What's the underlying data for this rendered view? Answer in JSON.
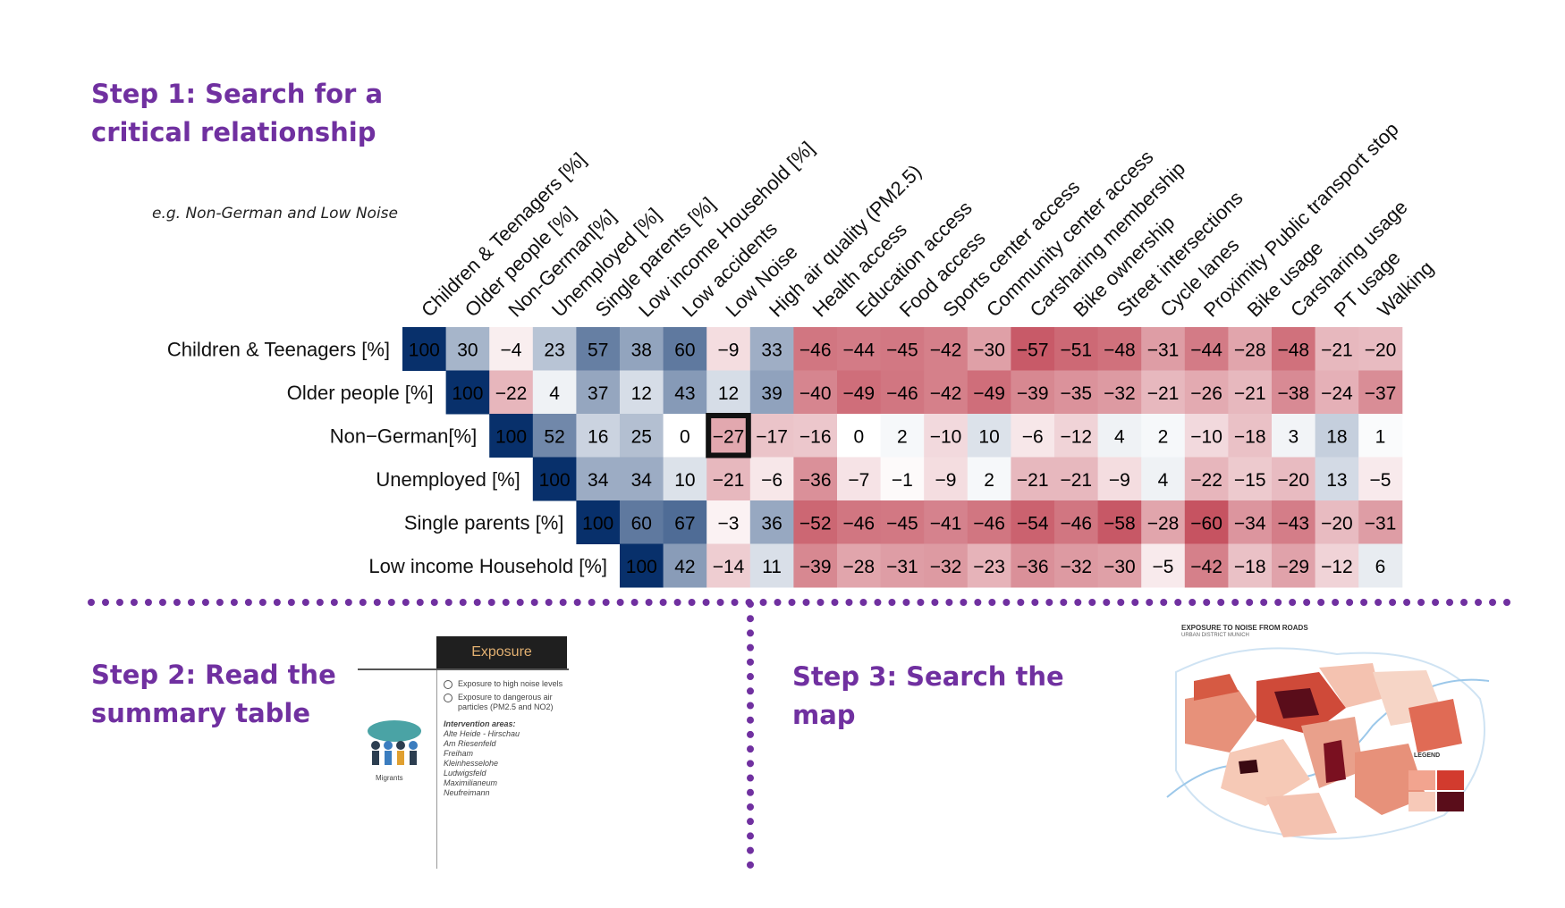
{
  "step1": {
    "title": "Step 1: Search for a\ncritical relationship",
    "example": "e.g. Non-German and Low Noise"
  },
  "step2": {
    "title": "Step 2: Read the\nsummary table"
  },
  "step3": {
    "title": "Step 3: Search the\nmap"
  },
  "summary_table": {
    "header": "Exposure",
    "options": [
      "Exposure to high noise levels",
      "Exposure to dangerous air particles (PM2.5 and NO2)"
    ],
    "intervention_label": "Intervention areas:",
    "areas": [
      "Alte Heide - Hirschau",
      "Am Riesenfeld",
      "Freiham",
      "Kleinhesselohe",
      "Ludwigsfeld",
      "Maximilianeum",
      "Neufreimann"
    ],
    "icon_label": "Migrants"
  },
  "map": {
    "title": "EXPOSURE TO NOISE FROM ROADS",
    "subtitle": "URBAN DISTRICT MUNICH",
    "legend": "LEGEND"
  },
  "colors": {
    "accent": "#7030a0",
    "positive": "#08306b",
    "negative": "#b2182b"
  },
  "chart_data": {
    "type": "heatmap",
    "rows": [
      "Children & Teenagers [%]",
      "Older people [%]",
      "Non−German[%]",
      "Unemployed [%]",
      "Single parents [%]",
      "Low income Household [%]"
    ],
    "columns": [
      "Children & Teenagers [%]",
      "Older people [%]",
      "Non-German[%]",
      "Unemployed [%]",
      "Single parents [%]",
      "Low income Household [%]",
      "Low accidents",
      "Low Noise",
      "High air quality (PM2.5)",
      "Health access",
      "Education access",
      "Food access",
      "Sports center access",
      "Community center access",
      "Carsharing membership",
      "Bike ownership",
      "Street intersections",
      "Cycle lanes",
      "Proximity Public transport stop",
      "Bike usage",
      "Carsharing usage",
      "PT usage",
      "Walking"
    ],
    "values": [
      [
        100,
        30,
        -4,
        23,
        57,
        38,
        60,
        -9,
        33,
        -46,
        -44,
        -45,
        -42,
        -30,
        -57,
        -51,
        -48,
        -31,
        -44,
        -28,
        -48,
        -21,
        -20
      ],
      [
        null,
        100,
        -22,
        4,
        37,
        12,
        43,
        12,
        39,
        -40,
        -49,
        -46,
        -42,
        -49,
        -39,
        -35,
        -32,
        -21,
        -26,
        -21,
        -38,
        -24,
        -37
      ],
      [
        null,
        null,
        100,
        52,
        16,
        25,
        0,
        -27,
        -17,
        -16,
        0,
        2,
        -10,
        10,
        -6,
        -12,
        4,
        2,
        -10,
        -18,
        3,
        18,
        1
      ],
      [
        null,
        null,
        null,
        100,
        34,
        34,
        10,
        -21,
        -6,
        -36,
        -7,
        -1,
        -9,
        2,
        -21,
        -21,
        -9,
        4,
        -22,
        -15,
        -20,
        13,
        -5
      ],
      [
        null,
        null,
        null,
        null,
        100,
        60,
        67,
        -3,
        36,
        -52,
        -46,
        -45,
        -41,
        -46,
        -54,
        -46,
        -58,
        -28,
        -60,
        -34,
        -43,
        -20,
        -31
      ],
      [
        null,
        null,
        null,
        null,
        null,
        100,
        42,
        -14,
        11,
        -39,
        -28,
        -31,
        -32,
        -23,
        -36,
        -32,
        -30,
        -5,
        -42,
        -18,
        -29,
        -12,
        6
      ]
    ],
    "highlight": {
      "row": "Non−German[%]",
      "column": "Low Noise",
      "value": -27
    },
    "color_scale": {
      "negative": "#b2182b",
      "zero": "#ffffff",
      "positive": "#08306b",
      "range": [
        -100,
        100
      ]
    }
  }
}
